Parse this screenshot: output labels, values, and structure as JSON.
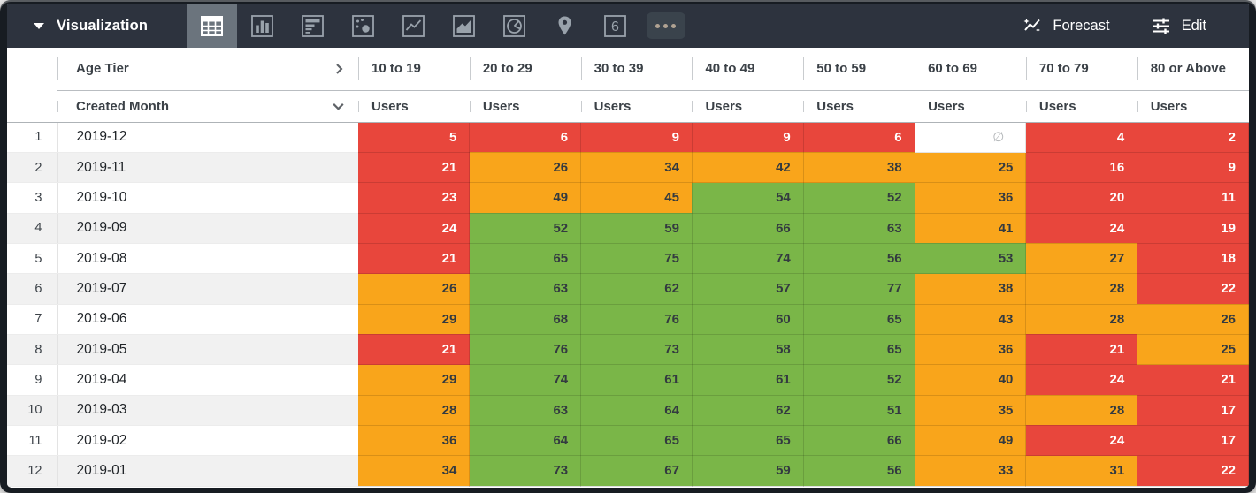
{
  "toolbar": {
    "visualization_label": "Visualization",
    "forecast_label": "Forecast",
    "edit_label": "Edit",
    "single_value_icon_label": "6",
    "viz_types": [
      "table",
      "column-chart",
      "bar-chart",
      "scatter",
      "line-chart",
      "area-chart",
      "pie-chart",
      "map",
      "single-value",
      "more"
    ],
    "selected_viz": "table"
  },
  "table": {
    "pivot_field": "Age Tier",
    "row_field": "Created Month",
    "measure_label": "Users",
    "null_symbol": "∅",
    "age_tiers": [
      "10 to 19",
      "20 to 29",
      "30 to 39",
      "40 to 49",
      "50 to 59",
      "60 to 69",
      "70 to 79",
      "80 or Above"
    ],
    "rows": [
      {
        "index": 1,
        "month": "2019-12",
        "cells": [
          {
            "v": 5,
            "c": "red"
          },
          {
            "v": 6,
            "c": "red"
          },
          {
            "v": 9,
            "c": "red"
          },
          {
            "v": 9,
            "c": "red"
          },
          {
            "v": 6,
            "c": "red"
          },
          {
            "v": null,
            "c": "none"
          },
          {
            "v": 4,
            "c": "red"
          },
          {
            "v": 2,
            "c": "red"
          }
        ]
      },
      {
        "index": 2,
        "month": "2019-11",
        "cells": [
          {
            "v": 21,
            "c": "red"
          },
          {
            "v": 26,
            "c": "orange"
          },
          {
            "v": 34,
            "c": "orange"
          },
          {
            "v": 42,
            "c": "orange"
          },
          {
            "v": 38,
            "c": "orange"
          },
          {
            "v": 25,
            "c": "orange"
          },
          {
            "v": 16,
            "c": "red"
          },
          {
            "v": 9,
            "c": "red"
          }
        ]
      },
      {
        "index": 3,
        "month": "2019-10",
        "cells": [
          {
            "v": 23,
            "c": "red"
          },
          {
            "v": 49,
            "c": "orange"
          },
          {
            "v": 45,
            "c": "orange"
          },
          {
            "v": 54,
            "c": "green"
          },
          {
            "v": 52,
            "c": "green"
          },
          {
            "v": 36,
            "c": "orange"
          },
          {
            "v": 20,
            "c": "red"
          },
          {
            "v": 11,
            "c": "red"
          }
        ]
      },
      {
        "index": 4,
        "month": "2019-09",
        "cells": [
          {
            "v": 24,
            "c": "red"
          },
          {
            "v": 52,
            "c": "green"
          },
          {
            "v": 59,
            "c": "green"
          },
          {
            "v": 66,
            "c": "green"
          },
          {
            "v": 63,
            "c": "green"
          },
          {
            "v": 41,
            "c": "orange"
          },
          {
            "v": 24,
            "c": "red"
          },
          {
            "v": 19,
            "c": "red"
          }
        ]
      },
      {
        "index": 5,
        "month": "2019-08",
        "cells": [
          {
            "v": 21,
            "c": "red"
          },
          {
            "v": 65,
            "c": "green"
          },
          {
            "v": 75,
            "c": "green"
          },
          {
            "v": 74,
            "c": "green"
          },
          {
            "v": 56,
            "c": "green"
          },
          {
            "v": 53,
            "c": "green"
          },
          {
            "v": 27,
            "c": "orange"
          },
          {
            "v": 18,
            "c": "red"
          }
        ]
      },
      {
        "index": 6,
        "month": "2019-07",
        "cells": [
          {
            "v": 26,
            "c": "orange"
          },
          {
            "v": 63,
            "c": "green"
          },
          {
            "v": 62,
            "c": "green"
          },
          {
            "v": 57,
            "c": "green"
          },
          {
            "v": 77,
            "c": "green"
          },
          {
            "v": 38,
            "c": "orange"
          },
          {
            "v": 28,
            "c": "orange"
          },
          {
            "v": 22,
            "c": "red"
          }
        ]
      },
      {
        "index": 7,
        "month": "2019-06",
        "cells": [
          {
            "v": 29,
            "c": "orange"
          },
          {
            "v": 68,
            "c": "green"
          },
          {
            "v": 76,
            "c": "green"
          },
          {
            "v": 60,
            "c": "green"
          },
          {
            "v": 65,
            "c": "green"
          },
          {
            "v": 43,
            "c": "orange"
          },
          {
            "v": 28,
            "c": "orange"
          },
          {
            "v": 26,
            "c": "orange"
          }
        ]
      },
      {
        "index": 8,
        "month": "2019-05",
        "cells": [
          {
            "v": 21,
            "c": "red"
          },
          {
            "v": 76,
            "c": "green"
          },
          {
            "v": 73,
            "c": "green"
          },
          {
            "v": 58,
            "c": "green"
          },
          {
            "v": 65,
            "c": "green"
          },
          {
            "v": 36,
            "c": "orange"
          },
          {
            "v": 21,
            "c": "red"
          },
          {
            "v": 25,
            "c": "orange"
          }
        ]
      },
      {
        "index": 9,
        "month": "2019-04",
        "cells": [
          {
            "v": 29,
            "c": "orange"
          },
          {
            "v": 74,
            "c": "green"
          },
          {
            "v": 61,
            "c": "green"
          },
          {
            "v": 61,
            "c": "green"
          },
          {
            "v": 52,
            "c": "green"
          },
          {
            "v": 40,
            "c": "orange"
          },
          {
            "v": 24,
            "c": "red"
          },
          {
            "v": 21,
            "c": "red"
          }
        ]
      },
      {
        "index": 10,
        "month": "2019-03",
        "cells": [
          {
            "v": 28,
            "c": "orange"
          },
          {
            "v": 63,
            "c": "green"
          },
          {
            "v": 64,
            "c": "green"
          },
          {
            "v": 62,
            "c": "green"
          },
          {
            "v": 51,
            "c": "green"
          },
          {
            "v": 35,
            "c": "orange"
          },
          {
            "v": 28,
            "c": "orange"
          },
          {
            "v": 17,
            "c": "red"
          }
        ]
      },
      {
        "index": 11,
        "month": "2019-02",
        "cells": [
          {
            "v": 36,
            "c": "orange"
          },
          {
            "v": 64,
            "c": "green"
          },
          {
            "v": 65,
            "c": "green"
          },
          {
            "v": 65,
            "c": "green"
          },
          {
            "v": 66,
            "c": "green"
          },
          {
            "v": 49,
            "c": "orange"
          },
          {
            "v": 24,
            "c": "red"
          },
          {
            "v": 17,
            "c": "red"
          }
        ]
      },
      {
        "index": 12,
        "month": "2019-01",
        "cells": [
          {
            "v": 34,
            "c": "orange"
          },
          {
            "v": 73,
            "c": "green"
          },
          {
            "v": 67,
            "c": "green"
          },
          {
            "v": 59,
            "c": "green"
          },
          {
            "v": 56,
            "c": "green"
          },
          {
            "v": 33,
            "c": "orange"
          },
          {
            "v": 31,
            "c": "orange"
          },
          {
            "v": 22,
            "c": "red"
          }
        ]
      }
    ]
  },
  "colors": {
    "red": "#e8463c",
    "orange": "#f9a51b",
    "green": "#7ab648",
    "toolbar_bg": "#2d333e"
  }
}
